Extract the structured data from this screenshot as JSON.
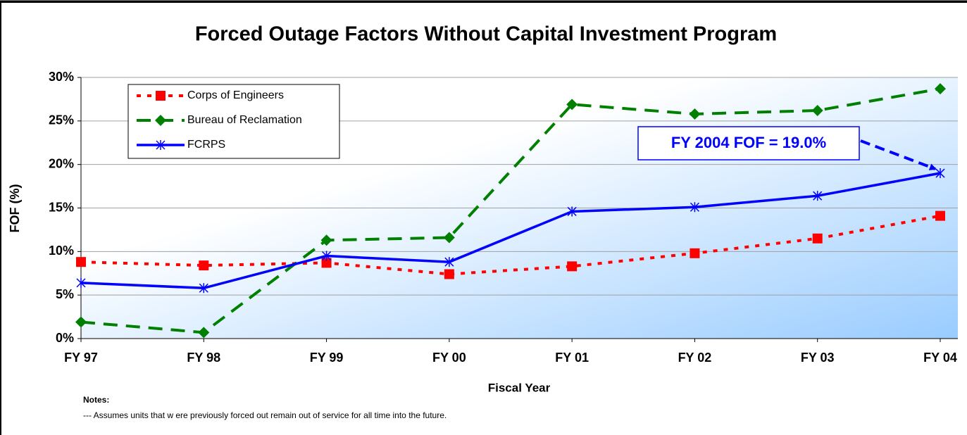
{
  "chart_data": {
    "type": "line",
    "title": "Forced Outage Factors Without Capital Investment Program",
    "x_label": "Fiscal Year",
    "y_label": "FOF (%)",
    "categories": [
      "FY 97",
      "FY 98",
      "FY 99",
      "FY 00",
      "FY 01",
      "FY 02",
      "FY 03",
      "FY 04"
    ],
    "series": [
      {
        "name": "Corps of Engineers",
        "color": "#ff0000",
        "marker": "square",
        "dash": "dot",
        "values": [
          8.8,
          8.4,
          8.7,
          7.4,
          8.3,
          9.8,
          11.5,
          14.1
        ]
      },
      {
        "name": "Bureau of Reclamation",
        "color": "#008000",
        "marker": "diamond",
        "dash": "dash",
        "values": [
          1.9,
          0.7,
          11.3,
          11.6,
          26.9,
          25.8,
          26.2,
          28.7
        ]
      },
      {
        "name": "FCRPS",
        "color": "#0000ff",
        "marker": "asterisk",
        "dash": "solid",
        "values": [
          6.4,
          5.8,
          9.5,
          8.8,
          14.6,
          15.1,
          16.4,
          19.0
        ]
      }
    ],
    "ylim": [
      0,
      30
    ],
    "yticks": [
      {
        "value": 0,
        "label": "0%"
      },
      {
        "value": 5,
        "label": "5%"
      },
      {
        "value": 10,
        "label": "10%"
      },
      {
        "value": 15,
        "label": "15%"
      },
      {
        "value": 20,
        "label": "20%"
      },
      {
        "value": 25,
        "label": "25%"
      },
      {
        "value": 30,
        "label": "30%"
      }
    ],
    "grid": true,
    "legend": "top-left",
    "annotation": "FY 2004 FOF = 19.0%",
    "notes_title": "Notes:",
    "notes": "--- Assumes units that w ere previously forced out remain out of service for all time into the future."
  }
}
